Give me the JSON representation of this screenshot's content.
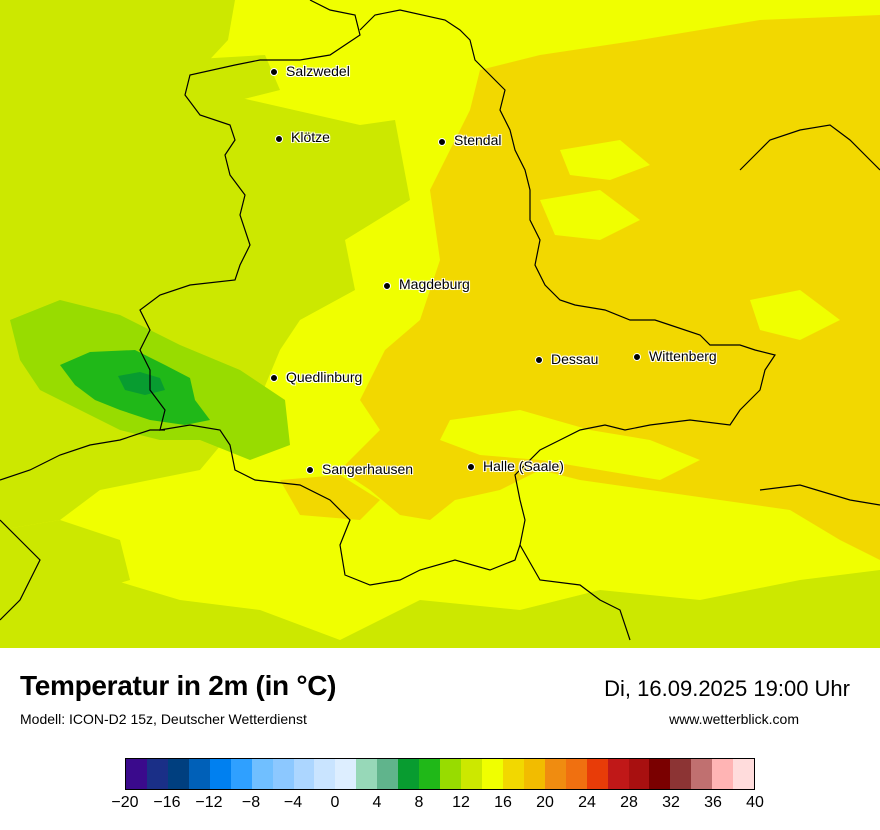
{
  "header": {
    "title": "Temperatur in 2m (in °C)",
    "model": "Modell: ICON-D2 15z, Deutscher Wetterdienst",
    "datetime": "Di, 16.09.2025 19:00 Uhr",
    "website": "www.wetterblick.com"
  },
  "cities": [
    {
      "id": "salzwedel",
      "name": "Salzwedel"
    },
    {
      "id": "kloetze",
      "name": "Klötze"
    },
    {
      "id": "stendal",
      "name": "Stendal"
    },
    {
      "id": "magdeburg",
      "name": "Magdeburg"
    },
    {
      "id": "dessau",
      "name": "Dessau"
    },
    {
      "id": "wittenberg",
      "name": "Wittenberg"
    },
    {
      "id": "quedlinburg",
      "name": "Quedlinburg"
    },
    {
      "id": "sangerhausen",
      "name": "Sangerhausen"
    },
    {
      "id": "halle",
      "name": "Halle (Saale)"
    }
  ],
  "legend": {
    "ticks": [
      "−20",
      "−16",
      "−12",
      "−8",
      "−4",
      "0",
      "4",
      "8",
      "12",
      "16",
      "20",
      "24",
      "28",
      "32",
      "36",
      "40"
    ],
    "colors": [
      "#3a0a8c",
      "#1a2f87",
      "#003f7f",
      "#0060b8",
      "#0080f0",
      "#2fa0ff",
      "#70bfff",
      "#8cc8ff",
      "#acd6ff",
      "#c9e4ff",
      "#ddeeff",
      "#97d8b8",
      "#60b48c",
      "#089c30",
      "#20b818",
      "#98dc00",
      "#cce800",
      "#f0ff00",
      "#f2d800",
      "#f2bc00",
      "#f08c10",
      "#f07010",
      "#e83c08",
      "#c01818",
      "#a81010",
      "#7a0000",
      "#8c3434",
      "#c07070",
      "#ffb4b4",
      "#ffdcdc"
    ]
  },
  "colors": {
    "field_base": "#f0ff00",
    "field_warm": "#f2d800",
    "field_cool": "#cce800",
    "field_mild": "#98dc00",
    "field_green": "#20b818",
    "field_dark": "#089c30"
  }
}
